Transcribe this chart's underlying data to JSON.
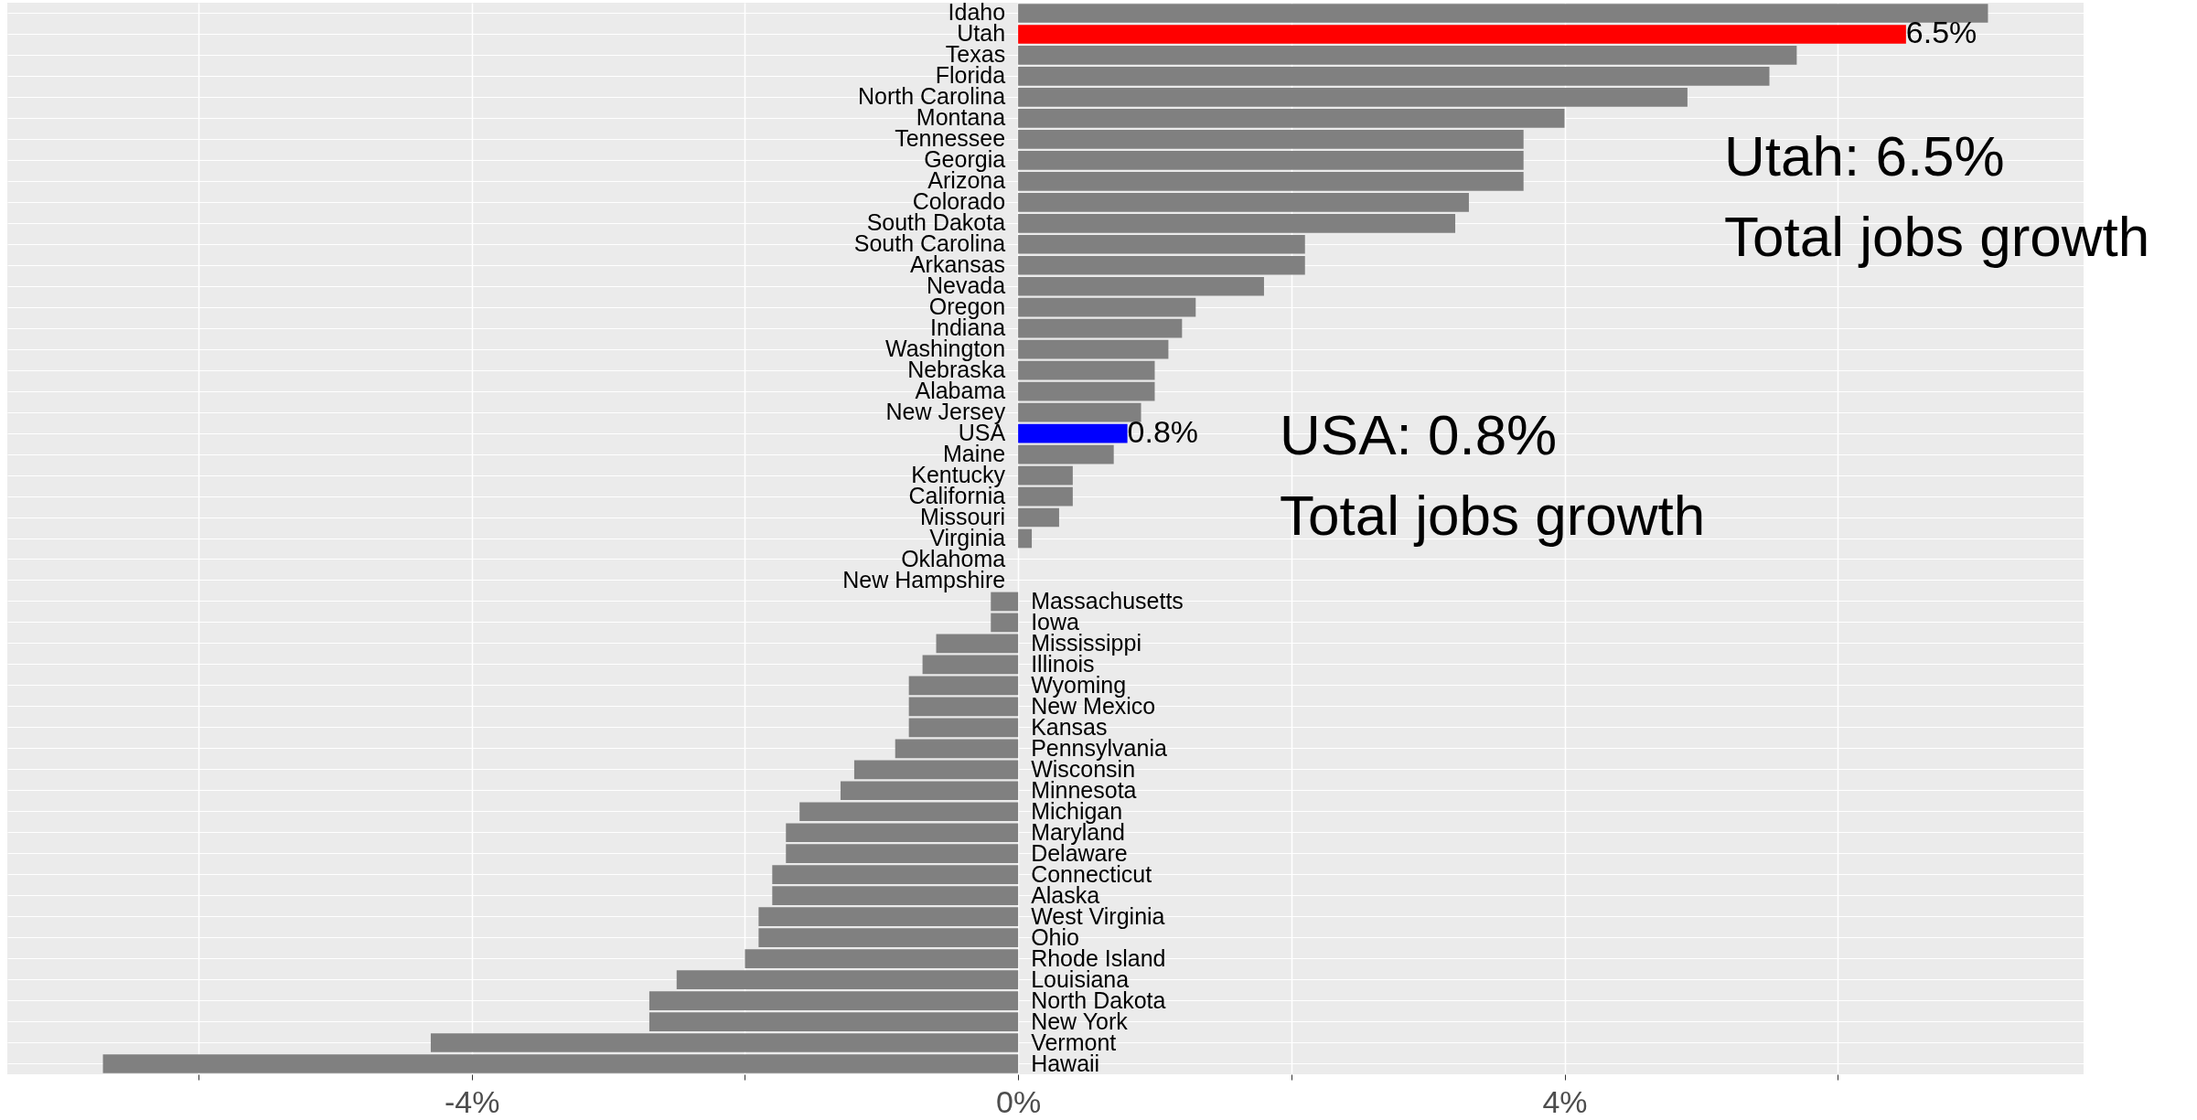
{
  "chart_data": {
    "type": "bar",
    "orientation": "horizontal",
    "categories": [
      "Idaho",
      "Utah",
      "Texas",
      "Florida",
      "North Carolina",
      "Montana",
      "Tennessee",
      "Georgia",
      "Arizona",
      "Colorado",
      "South Dakota",
      "South Carolina",
      "Arkansas",
      "Nevada",
      "Oregon",
      "Indiana",
      "Washington",
      "Nebraska",
      "Alabama",
      "New Jersey",
      "USA",
      "Maine",
      "Kentucky",
      "California",
      "Missouri",
      "Virginia",
      "Oklahoma",
      "New Hampshire",
      "Massachusetts",
      "Iowa",
      "Mississippi",
      "Illinois",
      "Wyoming",
      "New Mexico",
      "Kansas",
      "Pennsylvania",
      "Wisconsin",
      "Minnesota",
      "Michigan",
      "Maryland",
      "Delaware",
      "Connecticut",
      "Alaska",
      "West Virginia",
      "Ohio",
      "Rhode Island",
      "Louisiana",
      "North Dakota",
      "New York",
      "Vermont",
      "Hawaii"
    ],
    "values": [
      7.1,
      6.5,
      5.7,
      5.5,
      4.9,
      4.0,
      3.7,
      3.7,
      3.7,
      3.3,
      3.2,
      2.1,
      2.1,
      1.8,
      1.3,
      1.2,
      1.1,
      1.0,
      1.0,
      0.9,
      0.8,
      0.7,
      0.4,
      0.4,
      0.3,
      0.1,
      0,
      0,
      -0.2,
      -0.2,
      -0.6,
      -0.7,
      -0.8,
      -0.8,
      -0.8,
      -0.9,
      -1.2,
      -1.3,
      -1.6,
      -1.7,
      -1.7,
      -1.8,
      -1.8,
      -1.9,
      -1.9,
      -2.0,
      -2.5,
      -2.7,
      -2.7,
      -4.3,
      -6.7
    ],
    "colors": [
      "#808080",
      "#ff0000",
      "#808080",
      "#808080",
      "#808080",
      "#808080",
      "#808080",
      "#808080",
      "#808080",
      "#808080",
      "#808080",
      "#808080",
      "#808080",
      "#808080",
      "#808080",
      "#808080",
      "#808080",
      "#808080",
      "#808080",
      "#808080",
      "#0000ff",
      "#808080",
      "#808080",
      "#808080",
      "#808080",
      "#808080",
      "#808080",
      "#808080",
      "#808080",
      "#808080",
      "#808080",
      "#808080",
      "#808080",
      "#808080",
      "#808080",
      "#808080",
      "#808080",
      "#808080",
      "#808080",
      "#808080",
      "#808080",
      "#808080",
      "#808080",
      "#808080",
      "#808080",
      "#808080",
      "#808080",
      "#808080",
      "#808080",
      "#808080",
      "#808080"
    ],
    "value_labels": [
      null,
      "6.5%",
      null,
      null,
      null,
      null,
      null,
      null,
      null,
      null,
      null,
      null,
      null,
      null,
      null,
      null,
      null,
      null,
      null,
      null,
      "0.8%",
      null,
      null,
      null,
      null,
      null,
      null,
      null,
      null,
      null,
      null,
      null,
      null,
      null,
      null,
      null,
      null,
      null,
      null,
      null,
      null,
      null,
      null,
      null,
      null,
      null,
      null,
      null,
      null,
      null,
      null
    ],
    "xlim": [
      -7.4,
      7.8
    ],
    "xticks": [
      {
        "value": -6,
        "label": null
      },
      {
        "value": -4,
        "label": "-4%"
      },
      {
        "value": -2,
        "label": null
      },
      {
        "value": 0,
        "label": "0%"
      },
      {
        "value": 2,
        "label": null
      },
      {
        "value": 4,
        "label": "4%"
      },
      {
        "value": 6,
        "label": null
      }
    ],
    "annotations": [
      "Utah: 6.5%\nTotal jobs growth",
      "USA: 0.8%\nTotal jobs growth"
    ],
    "grid": true,
    "legend": false,
    "tick_labels": "x"
  }
}
